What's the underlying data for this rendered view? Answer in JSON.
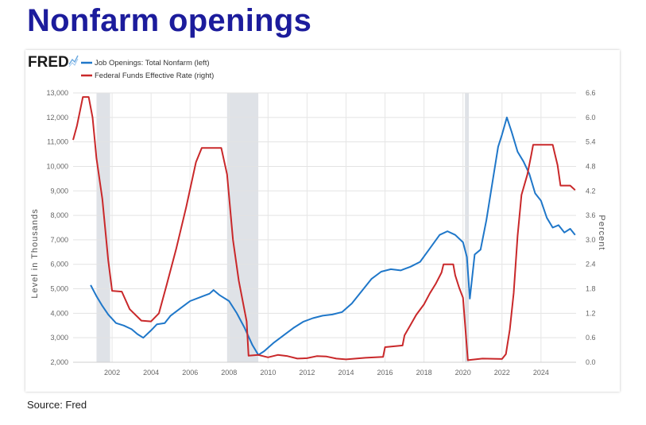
{
  "page": {
    "title": "Nonfarm openings",
    "source": "Source: Fred"
  },
  "chart_data": {
    "type": "line",
    "logo": "FRED",
    "xlabel": "",
    "x_range": [
      2000.0,
      2025.8
    ],
    "x_ticks": [
      2002,
      2004,
      2006,
      2008,
      2010,
      2012,
      2014,
      2016,
      2018,
      2020,
      2022,
      2024
    ],
    "recessions": [
      [
        2001.2,
        2001.9
      ],
      [
        2007.9,
        2009.5
      ],
      [
        2020.1,
        2020.3
      ]
    ],
    "left_axis": {
      "label": "Level in Thousands",
      "range": [
        2000,
        13000
      ],
      "ticks": [
        2000,
        3000,
        4000,
        5000,
        6000,
        7000,
        8000,
        9000,
        10000,
        11000,
        12000,
        13000
      ],
      "tick_labels": [
        "2,000",
        "3,000",
        "4,000",
        "5,000",
        "6,000",
        "7,000",
        "8,000",
        "9,000",
        "10,000",
        "11,000",
        "12,000",
        "13,000"
      ]
    },
    "right_axis": {
      "label": "Percent",
      "range": [
        0,
        6.6
      ],
      "ticks": [
        0,
        0.6,
        1.2,
        1.8,
        2.4,
        3.0,
        3.6,
        4.2,
        4.8,
        5.4,
        6.0,
        6.6
      ],
      "tick_labels": [
        "0.0",
        "0.6",
        "1.2",
        "1.8",
        "2.4",
        "3.0",
        "3.6",
        "4.2",
        "4.8",
        "5.4",
        "6.0",
        "6.6"
      ]
    },
    "series": [
      {
        "name": "Job Openings: Total Nonfarm (left)",
        "axis": "left",
        "color": "#1f77c9",
        "points": [
          [
            2000.9,
            5150
          ],
          [
            2001.2,
            4700
          ],
          [
            2001.5,
            4300
          ],
          [
            2001.8,
            3950
          ],
          [
            2002.2,
            3600
          ],
          [
            2002.6,
            3500
          ],
          [
            2003.0,
            3350
          ],
          [
            2003.3,
            3150
          ],
          [
            2003.6,
            3000
          ],
          [
            2004.0,
            3300
          ],
          [
            2004.3,
            3550
          ],
          [
            2004.7,
            3600
          ],
          [
            2005.0,
            3900
          ],
          [
            2005.5,
            4200
          ],
          [
            2006.0,
            4500
          ],
          [
            2006.5,
            4650
          ],
          [
            2007.0,
            4800
          ],
          [
            2007.2,
            4950
          ],
          [
            2007.5,
            4750
          ],
          [
            2008.0,
            4500
          ],
          [
            2008.4,
            4000
          ],
          [
            2008.8,
            3400
          ],
          [
            2009.2,
            2700
          ],
          [
            2009.5,
            2300
          ],
          [
            2009.8,
            2450
          ],
          [
            2010.3,
            2800
          ],
          [
            2010.8,
            3100
          ],
          [
            2011.3,
            3400
          ],
          [
            2011.8,
            3650
          ],
          [
            2012.3,
            3800
          ],
          [
            2012.8,
            3900
          ],
          [
            2013.3,
            3950
          ],
          [
            2013.8,
            4050
          ],
          [
            2014.3,
            4400
          ],
          [
            2014.8,
            4900
          ],
          [
            2015.3,
            5400
          ],
          [
            2015.8,
            5700
          ],
          [
            2016.3,
            5800
          ],
          [
            2016.8,
            5750
          ],
          [
            2017.3,
            5900
          ],
          [
            2017.8,
            6100
          ],
          [
            2018.3,
            6650
          ],
          [
            2018.8,
            7200
          ],
          [
            2019.2,
            7350
          ],
          [
            2019.6,
            7200
          ],
          [
            2020.0,
            6900
          ],
          [
            2020.2,
            6300
          ],
          [
            2020.35,
            4600
          ],
          [
            2020.6,
            6400
          ],
          [
            2020.9,
            6600
          ],
          [
            2021.2,
            7800
          ],
          [
            2021.5,
            9300
          ],
          [
            2021.8,
            10800
          ],
          [
            2022.0,
            11300
          ],
          [
            2022.25,
            12000
          ],
          [
            2022.5,
            11400
          ],
          [
            2022.8,
            10600
          ],
          [
            2023.1,
            10200
          ],
          [
            2023.4,
            9700
          ],
          [
            2023.7,
            8900
          ],
          [
            2024.0,
            8600
          ],
          [
            2024.3,
            7900
          ],
          [
            2024.6,
            7500
          ],
          [
            2024.9,
            7600
          ],
          [
            2025.2,
            7300
          ],
          [
            2025.5,
            7450
          ],
          [
            2025.75,
            7200
          ]
        ]
      },
      {
        "name": "Federal Funds Effective Rate (right)",
        "axis": "right",
        "color": "#c9282a",
        "points": [
          [
            2000.0,
            5.45
          ],
          [
            2000.2,
            5.8
          ],
          [
            2000.5,
            6.5
          ],
          [
            2000.8,
            6.5
          ],
          [
            2001.0,
            6.0
          ],
          [
            2001.2,
            5.0
          ],
          [
            2001.5,
            4.0
          ],
          [
            2001.8,
            2.5
          ],
          [
            2002.0,
            1.75
          ],
          [
            2002.5,
            1.73
          ],
          [
            2002.9,
            1.3
          ],
          [
            2003.5,
            1.02
          ],
          [
            2004.0,
            1.0
          ],
          [
            2004.4,
            1.2
          ],
          [
            2004.8,
            1.9
          ],
          [
            2005.3,
            2.8
          ],
          [
            2005.8,
            3.8
          ],
          [
            2006.3,
            4.9
          ],
          [
            2006.6,
            5.25
          ],
          [
            2007.0,
            5.25
          ],
          [
            2007.6,
            5.25
          ],
          [
            2007.9,
            4.6
          ],
          [
            2008.2,
            3.0
          ],
          [
            2008.5,
            2.0
          ],
          [
            2008.9,
            1.0
          ],
          [
            2009.0,
            0.16
          ],
          [
            2009.5,
            0.18
          ],
          [
            2010.0,
            0.12
          ],
          [
            2010.5,
            0.18
          ],
          [
            2011.0,
            0.15
          ],
          [
            2011.5,
            0.09
          ],
          [
            2012.0,
            0.1
          ],
          [
            2012.5,
            0.15
          ],
          [
            2013.0,
            0.14
          ],
          [
            2013.5,
            0.09
          ],
          [
            2014.0,
            0.07
          ],
          [
            2014.5,
            0.09
          ],
          [
            2015.0,
            0.11
          ],
          [
            2015.9,
            0.13
          ],
          [
            2016.0,
            0.37
          ],
          [
            2016.9,
            0.41
          ],
          [
            2017.0,
            0.66
          ],
          [
            2017.3,
            0.91
          ],
          [
            2017.6,
            1.16
          ],
          [
            2018.0,
            1.42
          ],
          [
            2018.3,
            1.69
          ],
          [
            2018.6,
            1.92
          ],
          [
            2018.9,
            2.2
          ],
          [
            2019.0,
            2.4
          ],
          [
            2019.5,
            2.4
          ],
          [
            2019.6,
            2.13
          ],
          [
            2019.8,
            1.83
          ],
          [
            2020.0,
            1.58
          ],
          [
            2020.15,
            0.65
          ],
          [
            2020.25,
            0.05
          ],
          [
            2021.0,
            0.09
          ],
          [
            2022.0,
            0.08
          ],
          [
            2022.2,
            0.2
          ],
          [
            2022.4,
            0.8
          ],
          [
            2022.6,
            1.7
          ],
          [
            2022.8,
            3.1
          ],
          [
            2023.0,
            4.1
          ],
          [
            2023.3,
            4.6
          ],
          [
            2023.5,
            5.08
          ],
          [
            2023.6,
            5.33
          ],
          [
            2024.0,
            5.33
          ],
          [
            2024.6,
            5.33
          ],
          [
            2024.7,
            5.13
          ],
          [
            2024.85,
            4.83
          ],
          [
            2025.0,
            4.33
          ],
          [
            2025.5,
            4.33
          ],
          [
            2025.75,
            4.22
          ]
        ]
      }
    ]
  }
}
